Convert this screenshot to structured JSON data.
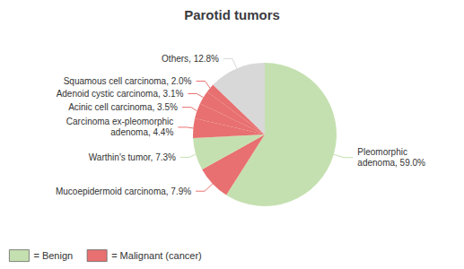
{
  "chart_data": {
    "type": "pie",
    "title": "Parotid tumors",
    "categories": [
      "Pleomorphic\nadenoma, 59.0%",
      "Mucoepidermoid carcinoma, 7.9%",
      "Warthin's tumor, 7.3%",
      "Carcinoma ex-pleomorphic\nadenoma, 4.4%",
      "Acinic cell carcinoma, 3.5%",
      "Adenoid cystic carcinoma, 3.1%",
      "Squamous cell carcinoma, 2.0%",
      "Others, 12.8%"
    ],
    "values": [
      59.0,
      7.9,
      7.3,
      4.4,
      3.5,
      3.1,
      2.0,
      12.8
    ],
    "colors": [
      "#c5e0b0",
      "#e87070",
      "#c5e0b0",
      "#e87070",
      "#e87070",
      "#e87070",
      "#e87070",
      "#d8d8d8"
    ],
    "legend": "lower left",
    "legend_entries": [
      {
        "name": "= Benign",
        "color": "#c5e0b0"
      },
      {
        "name": "= Malignant (cancer)",
        "color": "#e87070"
      }
    ]
  }
}
